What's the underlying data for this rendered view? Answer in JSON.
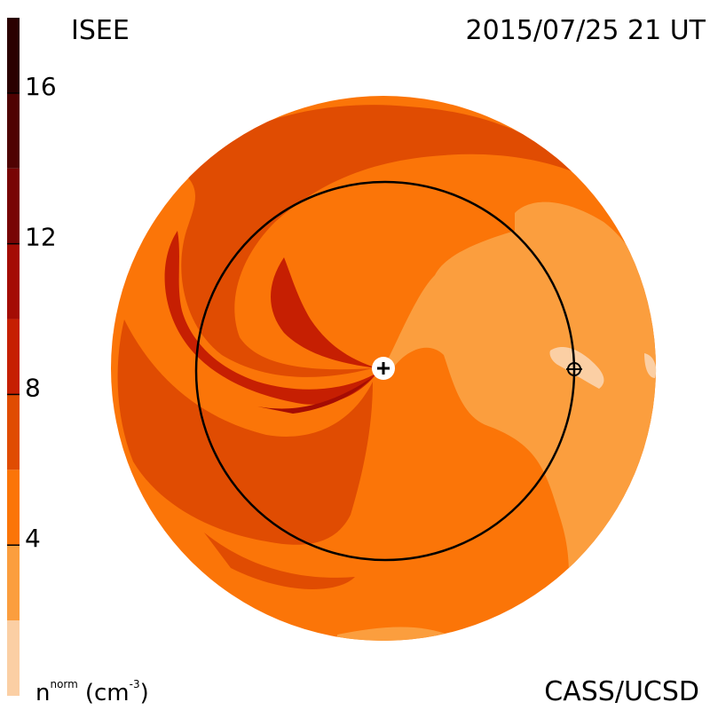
{
  "header": {
    "source_label": "ISEE",
    "datetime": "2015/07/25 21 UT"
  },
  "footer": {
    "credit": "CASS/UCSD"
  },
  "colorbar": {
    "unit_base": "n",
    "unit_superscript": "norm",
    "unit_paren": "(cm",
    "unit_exponent": "-3",
    "unit_close": ")",
    "tick_labels": [
      "4",
      "8",
      "12",
      "16"
    ],
    "tick_values": [
      4,
      8,
      12,
      16
    ],
    "bands": [
      {
        "from": 0,
        "to": 2,
        "color": "#fbcfa4"
      },
      {
        "from": 2,
        "to": 4,
        "color": "#fb9e3e"
      },
      {
        "from": 4,
        "to": 6,
        "color": "#fb7508"
      },
      {
        "from": 6,
        "to": 8,
        "color": "#e04c02"
      },
      {
        "from": 8,
        "to": 10,
        "color": "#c61f02"
      },
      {
        "from": 10,
        "to": 12,
        "color": "#a40c04"
      },
      {
        "from": 12,
        "to": 14,
        "color": "#780404"
      },
      {
        "from": 14,
        "to": 16,
        "color": "#4f0202"
      },
      {
        "from": 16,
        "to": 18,
        "color": "#2a0000"
      }
    ],
    "range": [
      0,
      18
    ]
  },
  "colors": {
    "lightest": "#fbcfa4",
    "light": "#fb9e3e",
    "base": "#fb7508",
    "medium": "#e04c02",
    "dark": "#c61f02",
    "darker": "#a40c04",
    "orbit": "#000000",
    "sun_disk": "#ffffff"
  },
  "markers": {
    "sun_icon": "plus-in-circle-icon",
    "earth_icon": "circled-plus-icon"
  }
}
